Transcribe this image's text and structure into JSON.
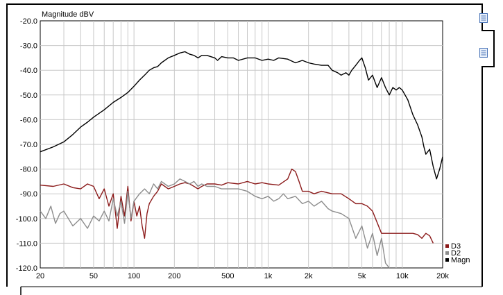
{
  "icons": [
    "document-icon",
    "document-icon"
  ],
  "chart_data": {
    "type": "line",
    "ylabel": "Magnitude dBV",
    "ylim": [
      -120,
      -20
    ],
    "xlim": [
      20,
      20000
    ],
    "x_scale": "log",
    "grid": true,
    "legend_placement": "bottom-right",
    "y_ticks": [
      "-20.0",
      "-30.0",
      "-40.0",
      "-50.0",
      "-60.0",
      "-70.0",
      "-80.0",
      "-90.0",
      "-100.0",
      "-110.0",
      "-120.0"
    ],
    "x_ticks": [
      {
        "value": 20,
        "label": "20"
      },
      {
        "value": 50,
        "label": "50"
      },
      {
        "value": 100,
        "label": "100"
      },
      {
        "value": 200,
        "label": "200"
      },
      {
        "value": 500,
        "label": "500"
      },
      {
        "value": 1000,
        "label": "1k"
      },
      {
        "value": 2000,
        "label": "2k"
      },
      {
        "value": 5000,
        "label": "5k"
      },
      {
        "value": 10000,
        "label": "10k"
      },
      {
        "value": 20000,
        "label": "20k"
      }
    ],
    "series": [
      {
        "name": "D3",
        "color": "#8b1a1a",
        "points": [
          [
            20,
            -86.5
          ],
          [
            25,
            -87
          ],
          [
            30,
            -86
          ],
          [
            35,
            -87.5
          ],
          [
            40,
            -88
          ],
          [
            45,
            -86
          ],
          [
            50,
            -87
          ],
          [
            55,
            -92
          ],
          [
            60,
            -88
          ],
          [
            65,
            -95
          ],
          [
            70,
            -90
          ],
          [
            75,
            -104
          ],
          [
            80,
            -91
          ],
          [
            85,
            -99
          ],
          [
            90,
            -87
          ],
          [
            95,
            -101
          ],
          [
            100,
            -93
          ],
          [
            105,
            -99
          ],
          [
            110,
            -95
          ],
          [
            115,
            -103
          ],
          [
            120,
            -108
          ],
          [
            125,
            -98
          ],
          [
            130,
            -94
          ],
          [
            140,
            -91
          ],
          [
            150,
            -89
          ],
          [
            160,
            -86
          ],
          [
            180,
            -88
          ],
          [
            200,
            -87
          ],
          [
            220,
            -86
          ],
          [
            240,
            -85.5
          ],
          [
            260,
            -86
          ],
          [
            280,
            -87
          ],
          [
            300,
            -88
          ],
          [
            320,
            -87
          ],
          [
            350,
            -86
          ],
          [
            400,
            -86
          ],
          [
            450,
            -86.5
          ],
          [
            500,
            -85.5
          ],
          [
            600,
            -86
          ],
          [
            700,
            -85
          ],
          [
            800,
            -86
          ],
          [
            900,
            -85.5
          ],
          [
            1000,
            -86
          ],
          [
            1200,
            -86.5
          ],
          [
            1400,
            -84
          ],
          [
            1500,
            -80
          ],
          [
            1600,
            -81
          ],
          [
            1700,
            -85
          ],
          [
            1800,
            -89
          ],
          [
            2000,
            -89
          ],
          [
            2200,
            -90
          ],
          [
            2500,
            -89
          ],
          [
            3000,
            -90
          ],
          [
            3500,
            -90
          ],
          [
            4000,
            -92
          ],
          [
            4500,
            -94
          ],
          [
            5000,
            -94
          ],
          [
            5500,
            -95
          ],
          [
            6000,
            -97
          ],
          [
            7000,
            -106
          ],
          [
            8000,
            -106
          ],
          [
            9000,
            -106
          ],
          [
            10000,
            -106
          ],
          [
            11000,
            -106
          ],
          [
            12000,
            -106
          ],
          [
            13000,
            -106.5
          ],
          [
            14000,
            -108
          ],
          [
            15000,
            -106
          ],
          [
            16000,
            -107
          ],
          [
            17000,
            -110
          ]
        ]
      },
      {
        "name": "D2",
        "color": "#8c8c8c",
        "points": [
          [
            20,
            -97
          ],
          [
            22,
            -100
          ],
          [
            24,
            -95
          ],
          [
            26,
            -102
          ],
          [
            28,
            -98
          ],
          [
            30,
            -97
          ],
          [
            35,
            -103
          ],
          [
            40,
            -100
          ],
          [
            45,
            -104
          ],
          [
            50,
            -99
          ],
          [
            55,
            -101
          ],
          [
            60,
            -97
          ],
          [
            65,
            -101
          ],
          [
            70,
            -92
          ],
          [
            75,
            -99
          ],
          [
            80,
            -93
          ],
          [
            85,
            -102
          ],
          [
            90,
            -89
          ],
          [
            95,
            -100
          ],
          [
            100,
            -93
          ],
          [
            110,
            -90
          ],
          [
            120,
            -88
          ],
          [
            130,
            -90
          ],
          [
            140,
            -86
          ],
          [
            150,
            -88
          ],
          [
            160,
            -85
          ],
          [
            180,
            -87
          ],
          [
            200,
            -86
          ],
          [
            220,
            -84
          ],
          [
            240,
            -85
          ],
          [
            260,
            -86
          ],
          [
            280,
            -85
          ],
          [
            300,
            -87
          ],
          [
            320,
            -86
          ],
          [
            350,
            -87
          ],
          [
            400,
            -87
          ],
          [
            450,
            -88
          ],
          [
            500,
            -88
          ],
          [
            600,
            -88
          ],
          [
            700,
            -89
          ],
          [
            800,
            -91
          ],
          [
            900,
            -92
          ],
          [
            1000,
            -91
          ],
          [
            1100,
            -93
          ],
          [
            1200,
            -92
          ],
          [
            1300,
            -90
          ],
          [
            1400,
            -92
          ],
          [
            1600,
            -91
          ],
          [
            1800,
            -94
          ],
          [
            2000,
            -93
          ],
          [
            2200,
            -95
          ],
          [
            2500,
            -93
          ],
          [
            2800,
            -96
          ],
          [
            3000,
            -97
          ],
          [
            3500,
            -98
          ],
          [
            4000,
            -100
          ],
          [
            4500,
            -108
          ],
          [
            5000,
            -103
          ],
          [
            5500,
            -112
          ],
          [
            6000,
            -106
          ],
          [
            6500,
            -115
          ],
          [
            7000,
            -108
          ],
          [
            7500,
            -118
          ],
          [
            8000,
            -120
          ]
        ]
      },
      {
        "name": "Magn",
        "color": "#000000",
        "points": [
          [
            20,
            -73
          ],
          [
            25,
            -71
          ],
          [
            30,
            -69
          ],
          [
            35,
            -66
          ],
          [
            40,
            -63
          ],
          [
            45,
            -61
          ],
          [
            50,
            -59
          ],
          [
            60,
            -56
          ],
          [
            70,
            -53
          ],
          [
            80,
            -51
          ],
          [
            90,
            -49
          ],
          [
            100,
            -46.5
          ],
          [
            110,
            -44
          ],
          [
            120,
            -42
          ],
          [
            130,
            -40
          ],
          [
            140,
            -39
          ],
          [
            150,
            -38.5
          ],
          [
            160,
            -37
          ],
          [
            180,
            -35
          ],
          [
            200,
            -34
          ],
          [
            220,
            -33
          ],
          [
            240,
            -32.5
          ],
          [
            260,
            -33.5
          ],
          [
            280,
            -34
          ],
          [
            300,
            -35
          ],
          [
            320,
            -34
          ],
          [
            350,
            -34
          ],
          [
            400,
            -35
          ],
          [
            420,
            -36
          ],
          [
            450,
            -34.5
          ],
          [
            500,
            -35
          ],
          [
            550,
            -35
          ],
          [
            600,
            -36
          ],
          [
            700,
            -35
          ],
          [
            800,
            -35
          ],
          [
            900,
            -36
          ],
          [
            1000,
            -35.5
          ],
          [
            1100,
            -36
          ],
          [
            1200,
            -35
          ],
          [
            1400,
            -35.5
          ],
          [
            1600,
            -37
          ],
          [
            1800,
            -36
          ],
          [
            2000,
            -37
          ],
          [
            2200,
            -37.5
          ],
          [
            2500,
            -38
          ],
          [
            2800,
            -38
          ],
          [
            3000,
            -40
          ],
          [
            3300,
            -41
          ],
          [
            3500,
            -42
          ],
          [
            3800,
            -41
          ],
          [
            4000,
            -42
          ],
          [
            4200,
            -40
          ],
          [
            4500,
            -38
          ],
          [
            4800,
            -36
          ],
          [
            5000,
            -35
          ],
          [
            5300,
            -39
          ],
          [
            5600,
            -44
          ],
          [
            6000,
            -42
          ],
          [
            6500,
            -47
          ],
          [
            7000,
            -43
          ],
          [
            7500,
            -47
          ],
          [
            8000,
            -50
          ],
          [
            8500,
            -47
          ],
          [
            9000,
            -48
          ],
          [
            9500,
            -47
          ],
          [
            10000,
            -48
          ],
          [
            11000,
            -52
          ],
          [
            12000,
            -58
          ],
          [
            13000,
            -62
          ],
          [
            14000,
            -67
          ],
          [
            14500,
            -71
          ],
          [
            15000,
            -74
          ],
          [
            16000,
            -72
          ],
          [
            17000,
            -79
          ],
          [
            18000,
            -84
          ],
          [
            19000,
            -80
          ],
          [
            20000,
            -75
          ]
        ]
      }
    ]
  }
}
